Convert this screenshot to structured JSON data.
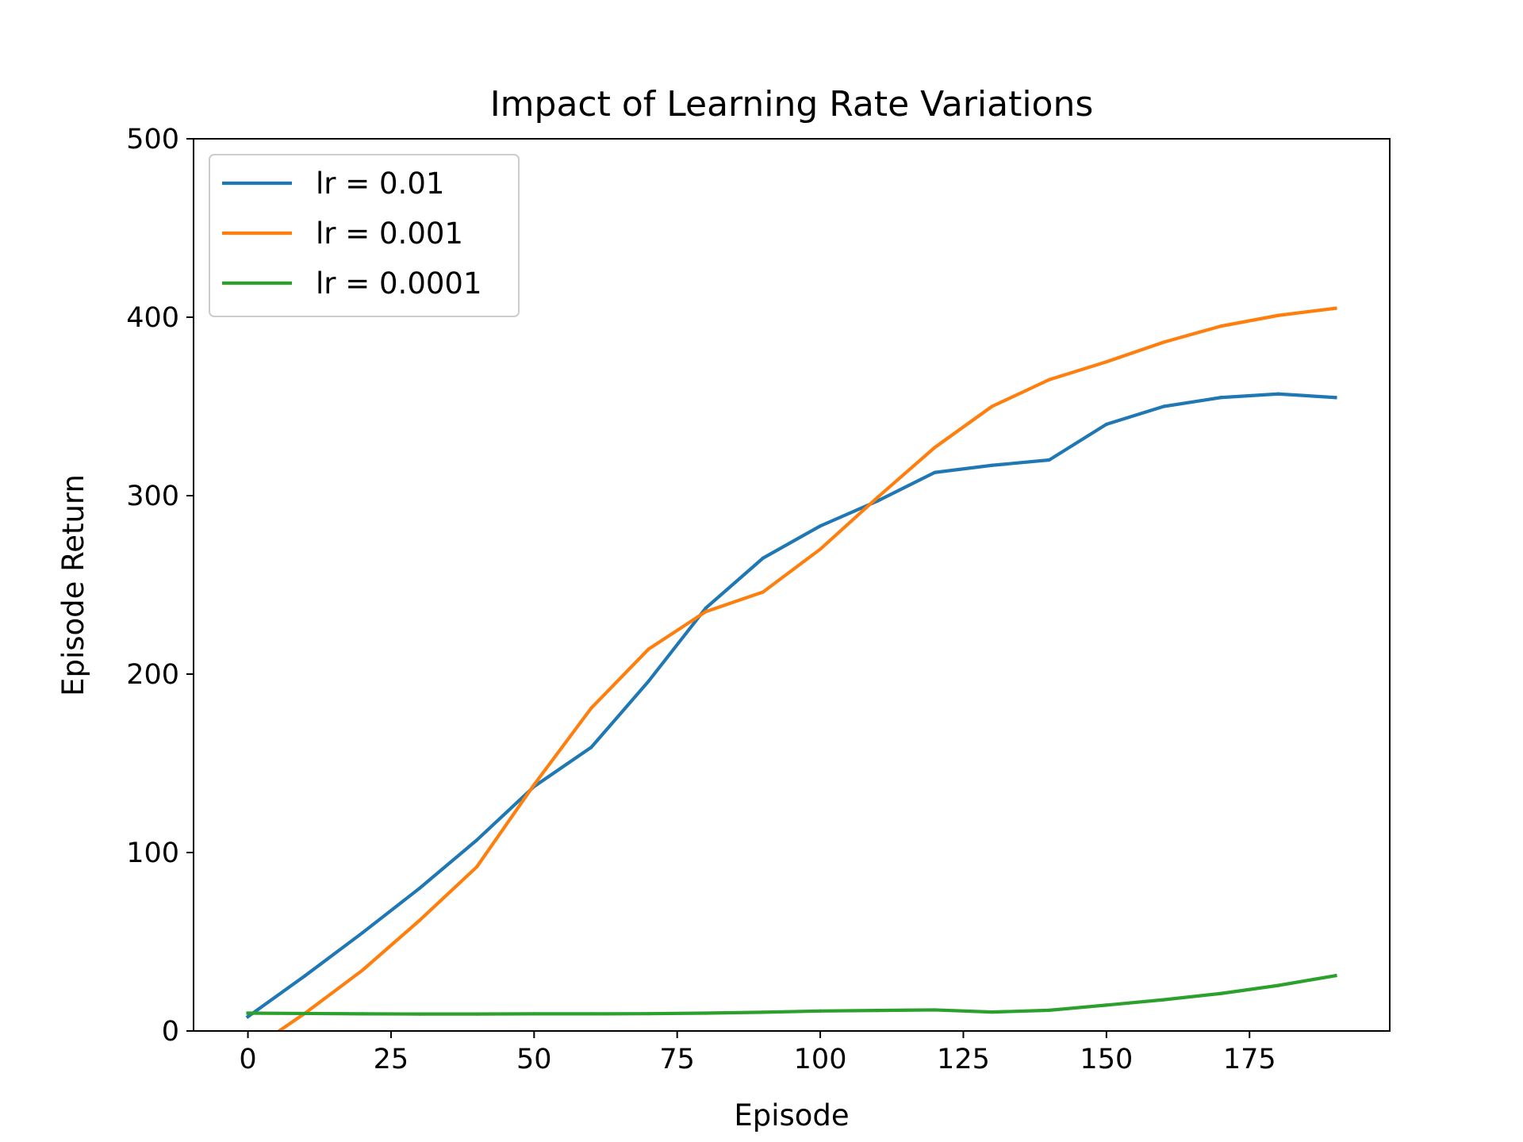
{
  "chart_data": {
    "type": "line",
    "title": "Impact of Learning Rate Variations",
    "xlabel": "Episode",
    "ylabel": "Episode Return",
    "xlim": [
      -9.5,
      199.5
    ],
    "ylim": [
      0,
      500
    ],
    "xticks": [
      0,
      25,
      50,
      75,
      100,
      125,
      150,
      175
    ],
    "yticks": [
      0,
      100,
      200,
      300,
      400,
      500
    ],
    "grid": false,
    "legend_position": "top-left",
    "x": [
      0,
      10,
      20,
      30,
      40,
      50,
      60,
      70,
      80,
      90,
      100,
      110,
      120,
      130,
      140,
      150,
      160,
      170,
      180,
      190
    ],
    "series": [
      {
        "name": "lr = 0.01",
        "color": "#1f77b4",
        "values": [
          8,
          31,
          55,
          80,
          107,
          137,
          159,
          196,
          237,
          265,
          283,
          297,
          313,
          317,
          320,
          340,
          350,
          355,
          357,
          355
        ]
      },
      {
        "name": "lr = 0.001",
        "color": "#ff7f0e",
        "values": [
          -12,
          10,
          34,
          62,
          92,
          138,
          181,
          214,
          235,
          246,
          270,
          299,
          327,
          350,
          365,
          375,
          386,
          395,
          401,
          405
        ]
      },
      {
        "name": "lr = 0.0001",
        "color": "#2ca02c",
        "values": [
          10,
          9.8,
          9.6,
          9.5,
          9.5,
          9.6,
          9.6,
          9.7,
          10,
          10.5,
          11.2,
          11.5,
          11.8,
          10.6,
          11.6,
          14.5,
          17.5,
          21,
          25.5,
          31
        ]
      }
    ]
  }
}
